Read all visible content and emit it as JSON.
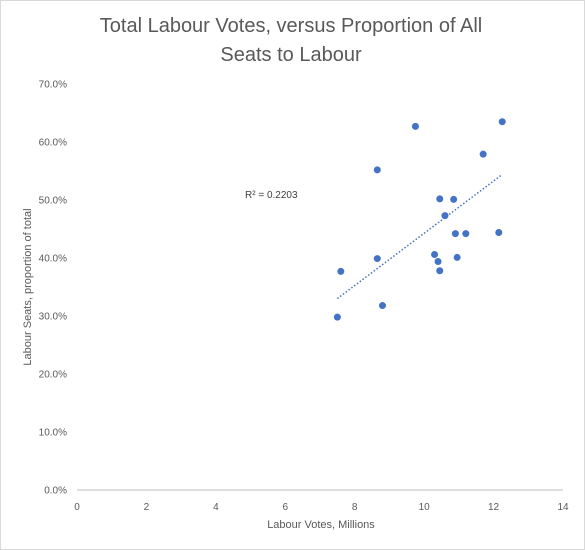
{
  "chart_data": {
    "type": "scatter",
    "title_lines": [
      "Total Labour Votes, versus Proportion of All",
      "Seats to Labour"
    ],
    "xlabel": "Labour Votes, Millions",
    "ylabel": "Labour Seats, proportion of total",
    "xlim": [
      0,
      14
    ],
    "ylim": [
      0,
      0.7
    ],
    "x_ticks": [
      0,
      2,
      4,
      6,
      8,
      10,
      12,
      14
    ],
    "x_tick_labels": [
      "0",
      "2",
      "4",
      "6",
      "8",
      "10",
      "12",
      "14"
    ],
    "y_ticks": [
      0,
      0.1,
      0.2,
      0.3,
      0.4,
      0.5,
      0.6,
      0.7
    ],
    "y_tick_labels": [
      "0.0%",
      "10.0%",
      "20.0%",
      "30.0%",
      "40.0%",
      "50.0%",
      "60.0%",
      "70.0%"
    ],
    "grid": false,
    "legend": "none",
    "points": [
      {
        "x": 7.5,
        "y": 0.298
      },
      {
        "x": 7.6,
        "y": 0.377
      },
      {
        "x": 8.65,
        "y": 0.552
      },
      {
        "x": 8.65,
        "y": 0.399
      },
      {
        "x": 8.8,
        "y": 0.318
      },
      {
        "x": 9.75,
        "y": 0.627
      },
      {
        "x": 10.3,
        "y": 0.406
      },
      {
        "x": 10.4,
        "y": 0.394
      },
      {
        "x": 10.45,
        "y": 0.502
      },
      {
        "x": 10.45,
        "y": 0.378
      },
      {
        "x": 10.6,
        "y": 0.473
      },
      {
        "x": 10.85,
        "y": 0.501
      },
      {
        "x": 10.9,
        "y": 0.442
      },
      {
        "x": 10.95,
        "y": 0.401
      },
      {
        "x": 11.2,
        "y": 0.442
      },
      {
        "x": 11.7,
        "y": 0.579
      },
      {
        "x": 12.15,
        "y": 0.444
      },
      {
        "x": 12.25,
        "y": 0.635
      }
    ],
    "trendline": {
      "type": "linear",
      "style": "dotted",
      "x": [
        7.5,
        12.25
      ],
      "y": [
        0.33,
        0.544
      ]
    },
    "annotation": "R² = 0.2203",
    "point_color": "#4472c4",
    "trend_color": "#4472c4"
  }
}
